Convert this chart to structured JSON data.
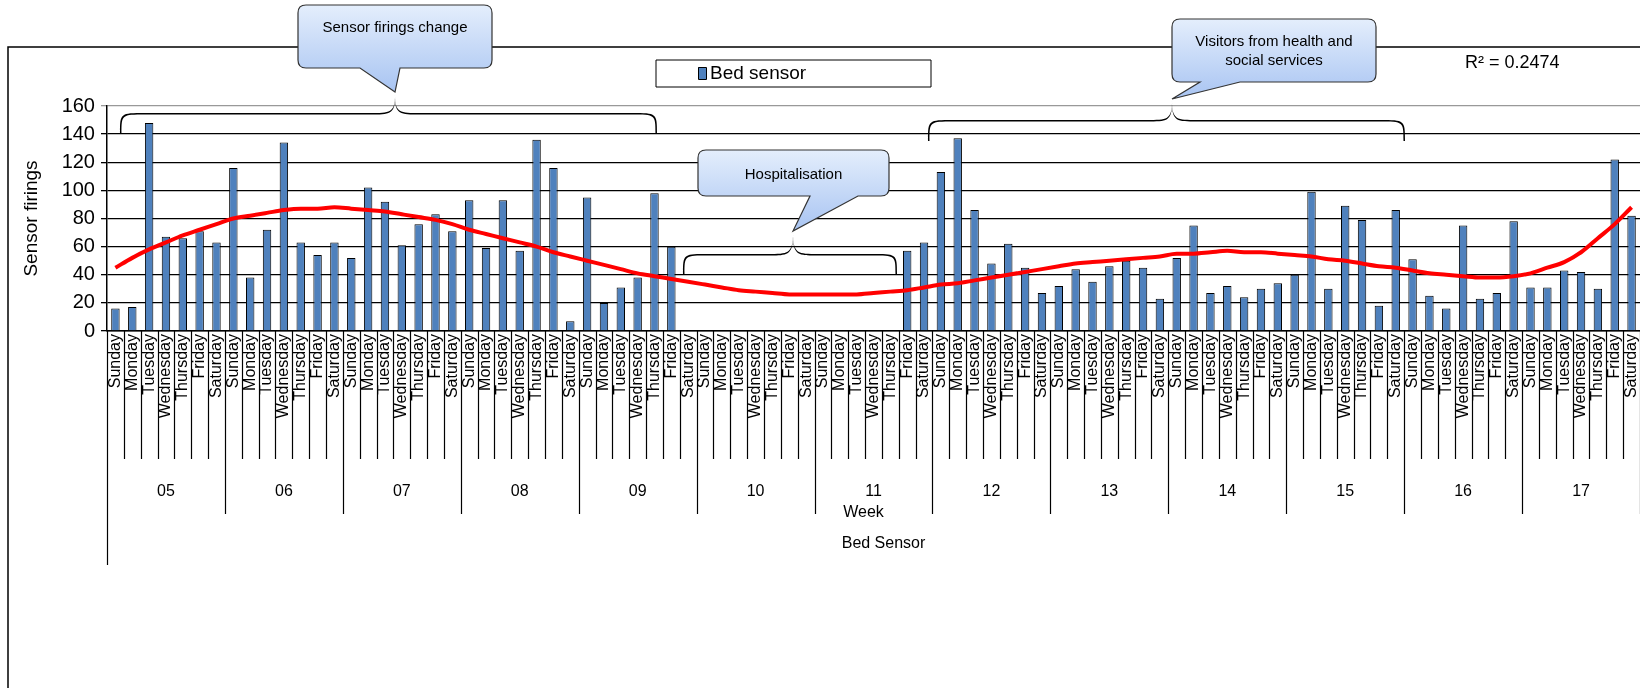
{
  "chart_data": {
    "type": "bar",
    "ylabel": "Sensor firings",
    "categories": [
      "Sunday",
      "Monday",
      "Tuesday",
      "Wednesday",
      "Thursday",
      "Friday",
      "Saturday",
      "Sunday",
      "Monday",
      "Tuesday",
      "Wednesday",
      "Thursday",
      "Friday",
      "Saturday",
      "Sunday",
      "Monday",
      "Tuesday",
      "Wednesday",
      "Thursday",
      "Friday",
      "Saturday",
      "Sunday",
      "Monday",
      "Tuesday",
      "Wednesday",
      "Thursday",
      "Friday",
      "Saturday",
      "Sunday",
      "Monday",
      "Tuesday",
      "Wednesday",
      "Thursday",
      "Friday",
      "Saturday",
      "Sunday",
      "Monday",
      "Tuesday",
      "Wednesday",
      "Thursday",
      "Friday",
      "Saturday",
      "Sunday",
      "Monday",
      "Tuesday",
      "Wednesday",
      "Thursday",
      "Friday",
      "Saturday",
      "Sunday",
      "Monday",
      "Tuesday",
      "Wednesday",
      "Thursday",
      "Friday",
      "Saturday",
      "Sunday",
      "Monday",
      "Tuesday",
      "Wednesday",
      "Thursday",
      "Friday",
      "Saturday",
      "Sunday",
      "Monday",
      "Tuesday",
      "Wednesday",
      "Thursday",
      "Friday",
      "Saturday",
      "Sunday",
      "Monday",
      "Tuesday",
      "Wednesday",
      "Thursday",
      "Friday",
      "Saturday",
      "Sunday",
      "Monday",
      "Tuesday",
      "Wednesday",
      "Thursday",
      "Friday",
      "Saturday",
      "Sunday",
      "Monday",
      "Tuesday",
      "Wednesday",
      "Thursday",
      "Friday",
      "Saturday"
    ],
    "series": [
      {
        "name": "Bed sensor",
        "color": "#4f81bd",
        "values": [
          16,
          17,
          148,
          67,
          66,
          71,
          63,
          116,
          38,
          72,
          134,
          63,
          54,
          63,
          52,
          102,
          92,
          61,
          76,
          83,
          71,
          93,
          59,
          93,
          57,
          136,
          116,
          7,
          95,
          20,
          31,
          38,
          98,
          60,
          null,
          null,
          null,
          null,
          null,
          null,
          null,
          null,
          null,
          null,
          null,
          null,
          null,
          57,
          63,
          113,
          137,
          86,
          48,
          62,
          45,
          27,
          32,
          44,
          35,
          46,
          50,
          45,
          23,
          52,
          75,
          27,
          32,
          24,
          30,
          34,
          40,
          99,
          30,
          89,
          79,
          18,
          86,
          51,
          25,
          16,
          75,
          23,
          27,
          78,
          31,
          31,
          43,
          42,
          30,
          122,
          82
        ]
      },
      {
        "type": "line",
        "color": "#ff0000",
        "values": [
          45,
          52,
          58,
          63,
          68,
          72,
          76,
          80,
          82,
          84,
          86,
          87,
          87,
          88,
          87,
          86,
          85,
          83,
          81,
          79,
          76,
          72,
          69,
          66,
          63,
          60,
          56,
          53,
          50,
          47,
          44,
          41,
          39,
          37,
          35,
          33,
          31,
          29,
          28,
          27,
          26,
          26,
          26,
          26,
          26,
          27,
          28,
          29,
          31,
          33,
          34,
          36,
          38,
          40,
          42,
          44,
          46,
          48,
          49,
          50,
          51,
          52,
          53,
          55,
          55,
          56,
          57,
          56,
          56,
          55,
          54,
          53,
          51,
          50,
          48,
          46,
          45,
          43,
          41,
          40,
          39,
          38,
          38,
          39,
          41,
          45,
          49,
          56,
          66,
          76,
          88
        ]
      }
    ],
    "ylim": [
      0,
      160
    ],
    "yticks": [
      0,
      20,
      40,
      60,
      80,
      100,
      120,
      140,
      160
    ],
    "grid": "y",
    "legend": "top",
    "marker": "none",
    "annotations": [
      "Sensor firings change",
      "Hospitalisation",
      "Visitors from health and social services",
      "R² = 0.2474",
      "Week",
      "Bed Sensor",
      "05",
      "06",
      "07",
      "08",
      "09",
      "10",
      "11",
      "12",
      "13",
      "14",
      "15",
      "16",
      "17"
    ]
  }
}
